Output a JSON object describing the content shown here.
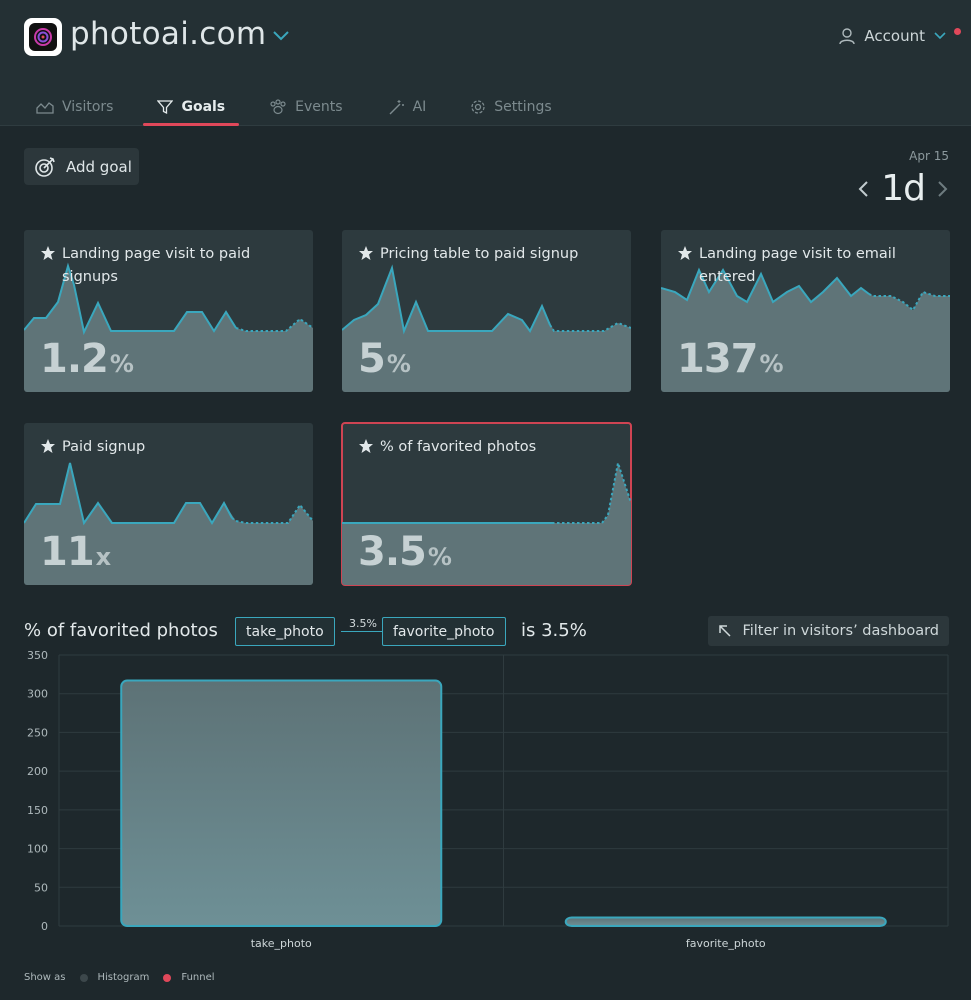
{
  "header": {
    "site_name": "photoai.com",
    "account_label": "Account",
    "colors": {
      "accent": "#e0485a",
      "teal": "#3aa7bd"
    }
  },
  "tabs": [
    {
      "label": "Visitors",
      "icon": "chart-area-icon",
      "active": false
    },
    {
      "label": "Goals",
      "icon": "funnel-icon",
      "active": true
    },
    {
      "label": "Events",
      "icon": "paw-icon",
      "active": false
    },
    {
      "label": "AI",
      "icon": "magic-wand-icon",
      "active": false
    },
    {
      "label": "Settings",
      "icon": "gear-icon",
      "active": false
    }
  ],
  "toolbar": {
    "add_goal_label": "Add goal",
    "date_label": "Apr 15",
    "range_label": "1d"
  },
  "goals": [
    {
      "title": "Landing page visit to paid signups",
      "value": "1.2",
      "unit": "%",
      "selected": false
    },
    {
      "title": "Pricing table to paid signup",
      "value": "5",
      "unit": "%",
      "selected": false
    },
    {
      "title": "Landing page visit to email entered",
      "value": "137",
      "unit": "%",
      "selected": false
    },
    {
      "title": "Paid signup",
      "value": "11",
      "unit": "x",
      "selected": false
    },
    {
      "title": "% of favorited photos",
      "value": "3.5",
      "unit": "%",
      "selected": true
    }
  ],
  "funnel": {
    "title": "% of favorited photos",
    "step1": "take_photo",
    "conversion": "3.5%",
    "step2": "favorite_photo",
    "result_text": "is 3.5%",
    "filter_label": "Filter in visitors’ dashboard"
  },
  "chart_data": {
    "type": "bar",
    "categories": [
      "take_photo",
      "favorite_photo"
    ],
    "values": [
      317,
      11
    ],
    "ylim": [
      0,
      350
    ],
    "yticks": [
      0,
      50,
      100,
      150,
      200,
      250,
      300,
      350
    ],
    "grid": true
  },
  "legend": {
    "prefix": "Show as",
    "items": [
      {
        "label": "Histogram",
        "color": "#3c474b"
      },
      {
        "label": "Funnel",
        "color": "#e0485a"
      }
    ]
  }
}
